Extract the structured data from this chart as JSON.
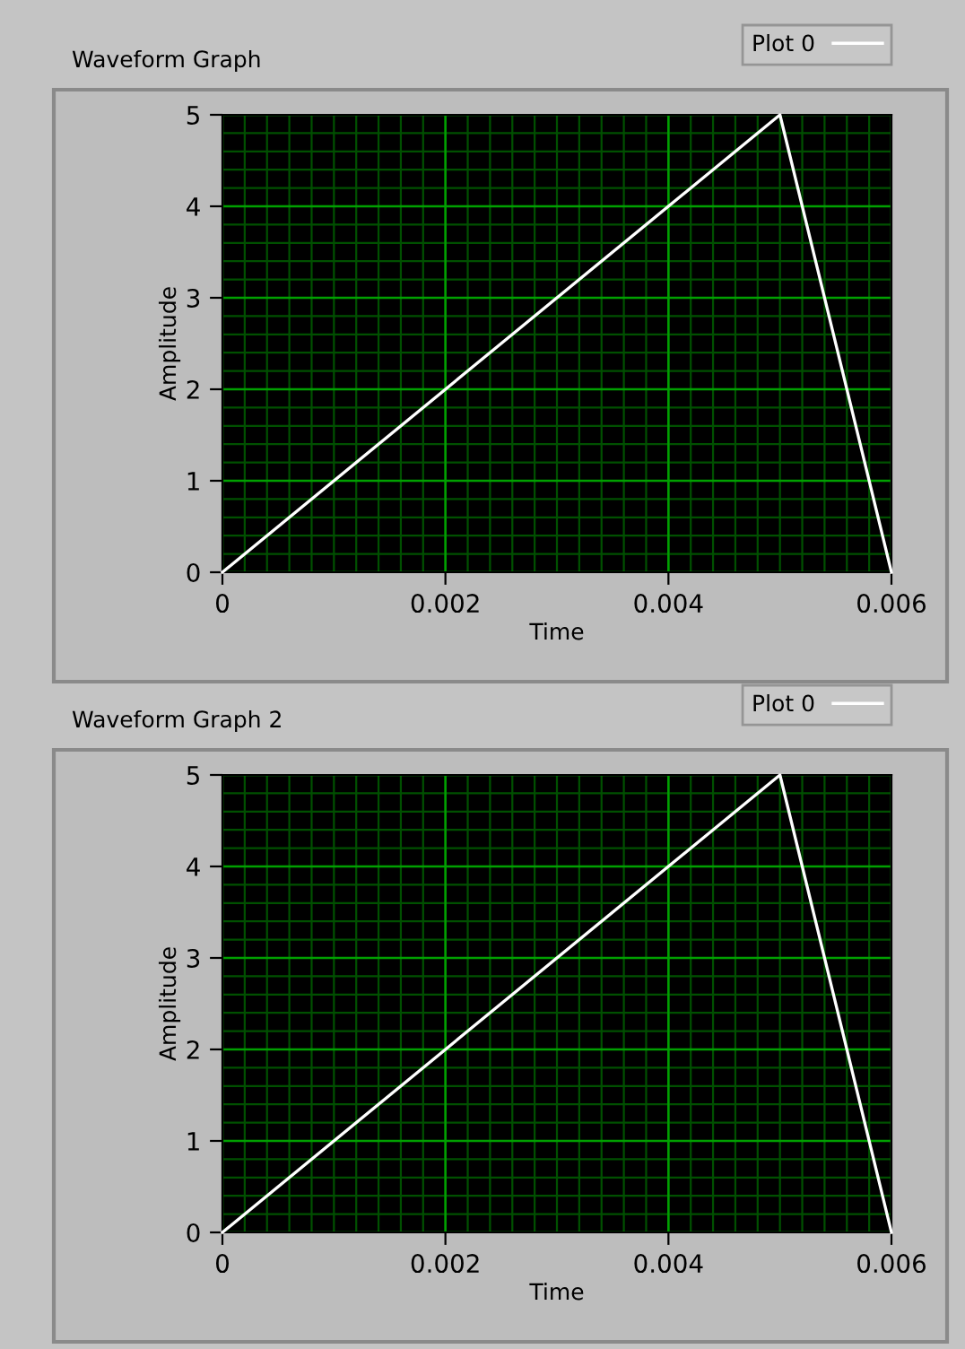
{
  "chart_data": [
    {
      "type": "line",
      "title": "Waveform Graph",
      "xlabel": "Time",
      "ylabel": "Amplitude",
      "x": [
        0,
        0.005,
        0.006
      ],
      "series": [
        {
          "name": "Plot 0",
          "color": "#ffffff",
          "values": [
            0,
            5,
            0
          ]
        }
      ],
      "xlim": [
        0,
        0.006
      ],
      "ylim": [
        0,
        5
      ],
      "xticks": [
        0,
        0.002,
        0.004,
        0.006
      ],
      "yticks": [
        0,
        1,
        2,
        3,
        4,
        5
      ],
      "grid": true,
      "legend": "top right"
    },
    {
      "type": "line",
      "title": "Waveform Graph 2",
      "xlabel": "Time",
      "ylabel": "Amplitude",
      "x": [
        0,
        0.005,
        0.006
      ],
      "series": [
        {
          "name": "Plot 0",
          "color": "#ffffff",
          "values": [
            0,
            5,
            0
          ]
        }
      ],
      "xlim": [
        0,
        0.006
      ],
      "ylim": [
        0,
        5
      ],
      "xticks": [
        0,
        0.002,
        0.004,
        0.006
      ],
      "yticks": [
        0,
        1,
        2,
        3,
        4,
        5
      ],
      "grid": true,
      "legend": "top right"
    }
  ]
}
